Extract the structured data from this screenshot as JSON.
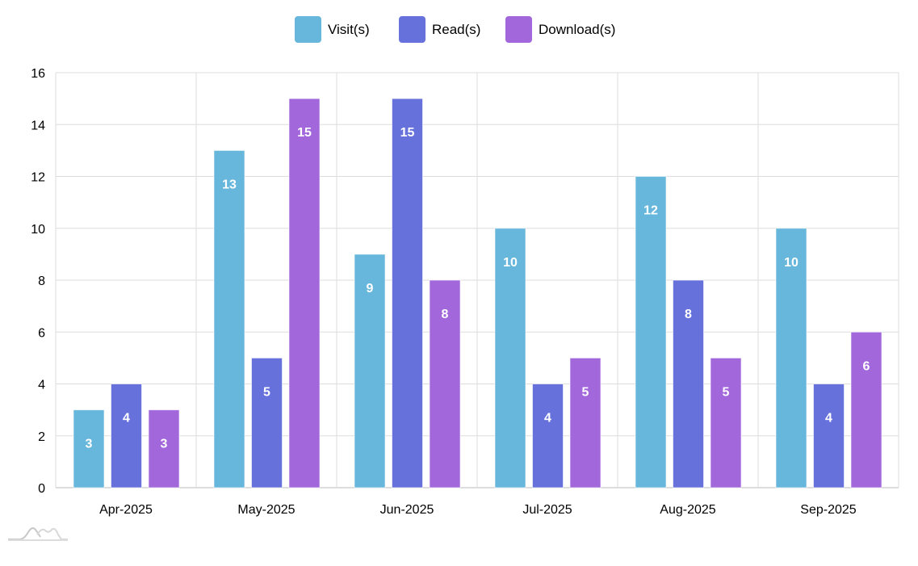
{
  "chart_data": {
    "type": "bar",
    "title": "",
    "xlabel": "",
    "ylabel": "",
    "ylim": [
      0,
      16
    ],
    "yticks": [
      0,
      2,
      4,
      6,
      8,
      10,
      12,
      14,
      16
    ],
    "grid": true,
    "legend_position": "top-center",
    "categories": [
      "Apr-2025",
      "May-2025",
      "Jun-2025",
      "Jul-2025",
      "Aug-2025",
      "Sep-2025"
    ],
    "series": [
      {
        "name": "Visit(s)",
        "color": "#67b7dc",
        "values": [
          3,
          13,
          9,
          10,
          12,
          10
        ]
      },
      {
        "name": "Read(s)",
        "color": "#6771dc",
        "values": [
          4,
          5,
          15,
          4,
          8,
          4
        ]
      },
      {
        "name": "Download(s)",
        "color": "#a367dc",
        "values": [
          3,
          15,
          8,
          5,
          5,
          6
        ]
      }
    ]
  }
}
